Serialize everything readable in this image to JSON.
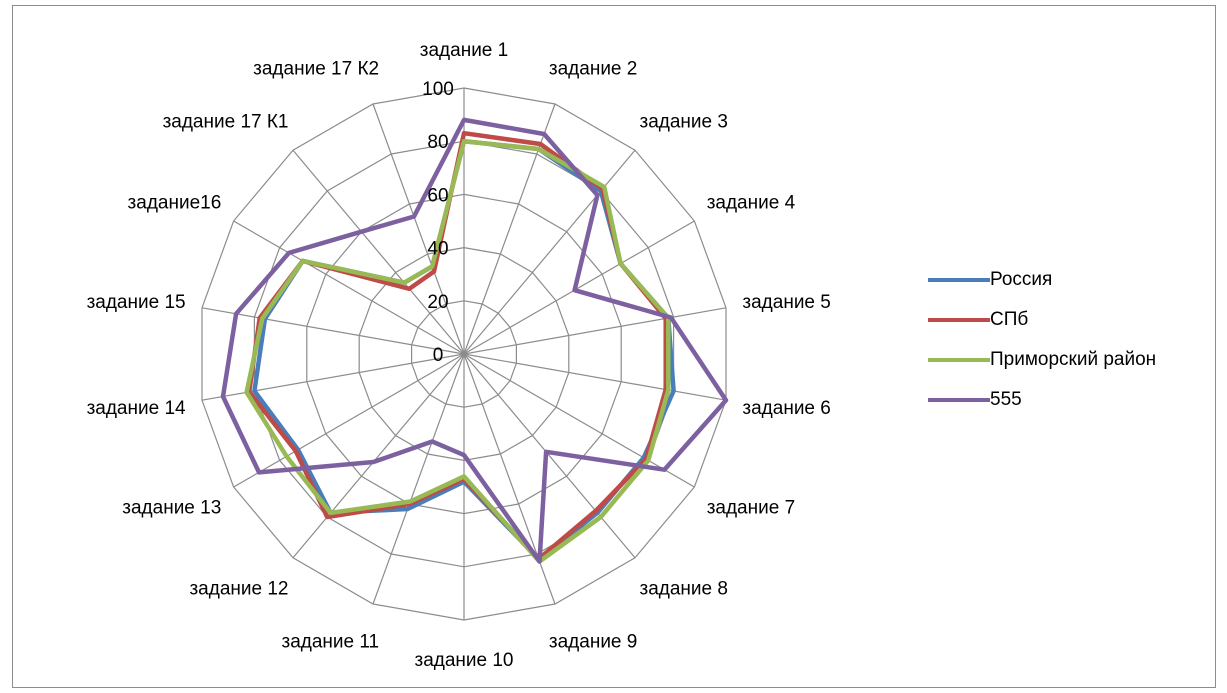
{
  "chart_data": {
    "type": "radar",
    "categories": [
      "задание 1",
      "задание 2",
      "задание 3",
      "задание 4",
      "задание 5",
      "задание 6",
      "задание 7",
      "задание 8",
      "задание 9",
      "задание 10",
      "задание 11",
      "задание 12",
      "задание 13",
      "задание 14",
      "задание 15",
      "задание16",
      "задание 17 К1",
      "задание 17 К2"
    ],
    "rlim": [
      0,
      100
    ],
    "ticks": [
      "0",
      "20",
      "40",
      "60",
      "80",
      "100"
    ],
    "grid": true,
    "legend_position": "right",
    "series": [
      {
        "name": "Россия",
        "color": "#4a7ebb",
        "values": [
          80,
          82,
          80,
          68,
          78,
          80,
          78,
          78,
          82,
          48,
          62,
          78,
          72,
          80,
          76,
          70,
          35,
          35
        ]
      },
      {
        "name": "СПб",
        "color": "#be4b48",
        "values": [
          83,
          84,
          81,
          68,
          77,
          77,
          79,
          77,
          82,
          47,
          60,
          80,
          73,
          82,
          78,
          70,
          32,
          33
        ]
      },
      {
        "name": "Приморский район",
        "color": "#98b954",
        "values": [
          80,
          82,
          82,
          68,
          78,
          78,
          80,
          80,
          83,
          46,
          59,
          78,
          77,
          83,
          77,
          70,
          35,
          35
        ]
      },
      {
        "name": "555",
        "color": "#7d60a0",
        "values": [
          88,
          88,
          78,
          48,
          79,
          100,
          87,
          48,
          83,
          38,
          35,
          53,
          89,
          92,
          87,
          76,
          60,
          55
        ]
      }
    ]
  }
}
